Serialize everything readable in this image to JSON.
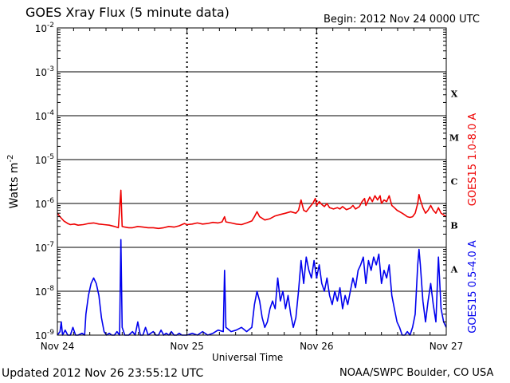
{
  "header": {
    "title": "GOES Xray Flux (5 minute data)",
    "begin": "Begin:  2012 Nov 24 0000 UTC"
  },
  "footer": {
    "updated": "Updated 2012 Nov 26 23:55:12 UTC",
    "credit": "NOAA/SWPC Boulder, CO USA"
  },
  "chart_data": {
    "type": "line",
    "title": "GOES Xray Flux (5 minute data)",
    "xlabel": "Universal Time",
    "ylabel": "Watts m-2",
    "yscale": "log",
    "ylim": [
      1e-09,
      0.01
    ],
    "xlim": [
      0,
      3
    ],
    "x_ticks": [
      {
        "x": 0,
        "label": "Nov 24"
      },
      {
        "x": 1,
        "label": "Nov 25"
      },
      {
        "x": 2,
        "label": "Nov 26"
      },
      {
        "x": 3,
        "label": "Nov 27"
      }
    ],
    "y_ticks": [
      {
        "value": 1e-09,
        "base": "10",
        "exp": "-9"
      },
      {
        "value": 1e-08,
        "base": "10",
        "exp": "-8"
      },
      {
        "value": 1e-07,
        "base": "10",
        "exp": "-7"
      },
      {
        "value": 1e-06,
        "base": "10",
        "exp": "-6"
      },
      {
        "value": 1e-05,
        "base": "10",
        "exp": "-5"
      },
      {
        "value": 0.0001,
        "base": "10",
        "exp": "-4"
      },
      {
        "value": 0.001,
        "base": "10",
        "exp": "-3"
      },
      {
        "value": 0.01,
        "base": "10",
        "exp": "-2"
      }
    ],
    "flare_classes": [
      {
        "label": "X",
        "value": 0.0001
      },
      {
        "label": "M",
        "value": 1e-05
      },
      {
        "label": "C",
        "value": 1e-06
      },
      {
        "label": "B",
        "value": 1e-07
      },
      {
        "label": "A",
        "value": 1e-08
      }
    ],
    "grid": true,
    "series": [
      {
        "name": "GOES15 1.0-8.0 A",
        "color": "#ee0000",
        "points": [
          [
            0.0,
            6e-07
          ],
          [
            0.02,
            5e-07
          ],
          [
            0.05,
            4e-07
          ],
          [
            0.08,
            3.5e-07
          ],
          [
            0.1,
            3.3e-07
          ],
          [
            0.13,
            3.4e-07
          ],
          [
            0.16,
            3.2e-07
          ],
          [
            0.2,
            3.3e-07
          ],
          [
            0.24,
            3.5e-07
          ],
          [
            0.28,
            3.6e-07
          ],
          [
            0.32,
            3.4e-07
          ],
          [
            0.36,
            3.3e-07
          ],
          [
            0.4,
            3.2e-07
          ],
          [
            0.44,
            3e-07
          ],
          [
            0.47,
            2.8e-07
          ],
          [
            0.49,
            2e-06
          ],
          [
            0.5,
            3e-07
          ],
          [
            0.52,
            2.9e-07
          ],
          [
            0.55,
            2.8e-07
          ],
          [
            0.58,
            2.8e-07
          ],
          [
            0.62,
            3e-07
          ],
          [
            0.66,
            2.9e-07
          ],
          [
            0.7,
            2.8e-07
          ],
          [
            0.74,
            2.8e-07
          ],
          [
            0.78,
            2.7e-07
          ],
          [
            0.82,
            2.8e-07
          ],
          [
            0.86,
            3e-07
          ],
          [
            0.9,
            2.9e-07
          ],
          [
            0.94,
            3.1e-07
          ],
          [
            0.98,
            3.5e-07
          ],
          [
            1.0,
            3.3e-07
          ],
          [
            1.04,
            3.4e-07
          ],
          [
            1.08,
            3.6e-07
          ],
          [
            1.12,
            3.4e-07
          ],
          [
            1.16,
            3.5e-07
          ],
          [
            1.2,
            3.7e-07
          ],
          [
            1.24,
            3.6e-07
          ],
          [
            1.27,
            3.8e-07
          ],
          [
            1.29,
            5e-07
          ],
          [
            1.3,
            3.8e-07
          ],
          [
            1.34,
            3.6e-07
          ],
          [
            1.38,
            3.4e-07
          ],
          [
            1.42,
            3.3e-07
          ],
          [
            1.46,
            3.6e-07
          ],
          [
            1.5,
            4e-07
          ],
          [
            1.52,
            5e-07
          ],
          [
            1.54,
            6.5e-07
          ],
          [
            1.56,
            5e-07
          ],
          [
            1.6,
            4.2e-07
          ],
          [
            1.64,
            4.5e-07
          ],
          [
            1.68,
            5.2e-07
          ],
          [
            1.72,
            5.6e-07
          ],
          [
            1.76,
            6e-07
          ],
          [
            1.8,
            6.5e-07
          ],
          [
            1.84,
            6e-07
          ],
          [
            1.86,
            7e-07
          ],
          [
            1.88,
            1.2e-06
          ],
          [
            1.9,
            7e-07
          ],
          [
            1.92,
            6.5e-07
          ],
          [
            1.95,
            8.5e-07
          ],
          [
            1.97,
            1e-06
          ],
          [
            1.99,
            1.3e-06
          ],
          [
            2.0,
            9e-07
          ],
          [
            2.02,
            1.1e-06
          ],
          [
            2.04,
            9.5e-07
          ],
          [
            2.06,
            8.5e-07
          ],
          [
            2.08,
            1e-06
          ],
          [
            2.1,
            8e-07
          ],
          [
            2.13,
            7.5e-07
          ],
          [
            2.16,
            8e-07
          ],
          [
            2.18,
            7.5e-07
          ],
          [
            2.2,
            8.5e-07
          ],
          [
            2.23,
            7.2e-07
          ],
          [
            2.26,
            7.8e-07
          ],
          [
            2.28,
            9e-07
          ],
          [
            2.3,
            7.5e-07
          ],
          [
            2.33,
            8.5e-07
          ],
          [
            2.35,
            1.1e-06
          ],
          [
            2.37,
            1.3e-06
          ],
          [
            2.38,
            9e-07
          ],
          [
            2.41,
            1.4e-06
          ],
          [
            2.43,
            1.1e-06
          ],
          [
            2.45,
            1.5e-06
          ],
          [
            2.47,
            1.2e-06
          ],
          [
            2.49,
            1.5e-06
          ],
          [
            2.5,
            1e-06
          ],
          [
            2.52,
            1.2e-06
          ],
          [
            2.54,
            1.1e-06
          ],
          [
            2.56,
            1.5e-06
          ],
          [
            2.58,
            9e-07
          ],
          [
            2.6,
            8e-07
          ],
          [
            2.62,
            7e-07
          ],
          [
            2.64,
            6.5e-07
          ],
          [
            2.66,
            6e-07
          ],
          [
            2.68,
            5.5e-07
          ],
          [
            2.7,
            5e-07
          ],
          [
            2.72,
            4.8e-07
          ],
          [
            2.74,
            5e-07
          ],
          [
            2.76,
            6e-07
          ],
          [
            2.78,
            1e-06
          ],
          [
            2.79,
            1.6e-06
          ],
          [
            2.8,
            1.2e-06
          ],
          [
            2.82,
            8e-07
          ],
          [
            2.84,
            6e-07
          ],
          [
            2.86,
            7e-07
          ],
          [
            2.88,
            9e-07
          ],
          [
            2.9,
            7e-07
          ],
          [
            2.92,
            6e-07
          ],
          [
            2.94,
            8e-07
          ],
          [
            2.96,
            6e-07
          ],
          [
            2.98,
            5.5e-07
          ],
          [
            3.0,
            5e-07
          ]
        ]
      },
      {
        "name": "GOES15 0.5-4.0 A",
        "color": "#0000ee",
        "points": [
          [
            0.0,
            1e-09
          ],
          [
            0.02,
            1.2e-09
          ],
          [
            0.03,
            2e-09
          ],
          [
            0.04,
            1e-09
          ],
          [
            0.06,
            1.3e-09
          ],
          [
            0.08,
            1e-09
          ],
          [
            0.1,
            1e-09
          ],
          [
            0.12,
            1.5e-09
          ],
          [
            0.14,
            1e-09
          ],
          [
            0.16,
            1e-09
          ],
          [
            0.19,
            1.1e-09
          ],
          [
            0.21,
            1e-09
          ],
          [
            0.22,
            3e-09
          ],
          [
            0.24,
            8e-09
          ],
          [
            0.26,
            1.5e-08
          ],
          [
            0.28,
            2e-08
          ],
          [
            0.3,
            1.5e-08
          ],
          [
            0.32,
            8e-09
          ],
          [
            0.34,
            2.5e-09
          ],
          [
            0.36,
            1.2e-09
          ],
          [
            0.38,
            1e-09
          ],
          [
            0.4,
            1.1e-09
          ],
          [
            0.42,
            1e-09
          ],
          [
            0.44,
            1e-09
          ],
          [
            0.46,
            1.2e-09
          ],
          [
            0.48,
            1e-09
          ],
          [
            0.49,
            1.5e-07
          ],
          [
            0.5,
            1.5e-09
          ],
          [
            0.52,
            1e-09
          ],
          [
            0.55,
            1e-09
          ],
          [
            0.58,
            1.2e-09
          ],
          [
            0.6,
            1e-09
          ],
          [
            0.62,
            2e-09
          ],
          [
            0.64,
            1e-09
          ],
          [
            0.66,
            1e-09
          ],
          [
            0.68,
            1.5e-09
          ],
          [
            0.7,
            1e-09
          ],
          [
            0.72,
            1.1e-09
          ],
          [
            0.74,
            1.2e-09
          ],
          [
            0.76,
            1e-09
          ],
          [
            0.78,
            1e-09
          ],
          [
            0.8,
            1.3e-09
          ],
          [
            0.82,
            1e-09
          ],
          [
            0.84,
            1.1e-09
          ],
          [
            0.86,
            1e-09
          ],
          [
            0.88,
            1.2e-09
          ],
          [
            0.9,
            1e-09
          ],
          [
            0.92,
            1e-09
          ],
          [
            0.94,
            1.1e-09
          ],
          [
            0.96,
            1e-09
          ],
          [
            1.0,
            1e-09
          ],
          [
            1.04,
            1.1e-09
          ],
          [
            1.08,
            1e-09
          ],
          [
            1.12,
            1.2e-09
          ],
          [
            1.16,
            1e-09
          ],
          [
            1.2,
            1.1e-09
          ],
          [
            1.24,
            1.3e-09
          ],
          [
            1.28,
            1.2e-09
          ],
          [
            1.29,
            3e-08
          ],
          [
            1.3,
            1.5e-09
          ],
          [
            1.34,
            1.2e-09
          ],
          [
            1.38,
            1.3e-09
          ],
          [
            1.42,
            1.5e-09
          ],
          [
            1.46,
            1.2e-09
          ],
          [
            1.5,
            1.5e-09
          ],
          [
            1.52,
            5e-09
          ],
          [
            1.54,
            1e-08
          ],
          [
            1.56,
            6e-09
          ],
          [
            1.58,
            2.5e-09
          ],
          [
            1.6,
            1.5e-09
          ],
          [
            1.62,
            2e-09
          ],
          [
            1.64,
            4e-09
          ],
          [
            1.66,
            6e-09
          ],
          [
            1.68,
            4e-09
          ],
          [
            1.7,
            2e-08
          ],
          [
            1.72,
            6e-09
          ],
          [
            1.74,
            1e-08
          ],
          [
            1.76,
            4e-09
          ],
          [
            1.78,
            8e-09
          ],
          [
            1.8,
            3e-09
          ],
          [
            1.82,
            1.5e-09
          ],
          [
            1.84,
            2.5e-09
          ],
          [
            1.86,
            1e-08
          ],
          [
            1.88,
            5e-08
          ],
          [
            1.9,
            1.5e-08
          ],
          [
            1.92,
            6e-08
          ],
          [
            1.94,
            3e-08
          ],
          [
            1.96,
            2e-08
          ],
          [
            1.98,
            5e-08
          ],
          [
            2.0,
            2e-08
          ],
          [
            2.02,
            4e-08
          ],
          [
            2.04,
            1.5e-08
          ],
          [
            2.06,
            1e-08
          ],
          [
            2.08,
            2e-08
          ],
          [
            2.1,
            8e-09
          ],
          [
            2.12,
            5e-09
          ],
          [
            2.14,
            1e-08
          ],
          [
            2.16,
            6e-09
          ],
          [
            2.18,
            1.2e-08
          ],
          [
            2.2,
            4e-09
          ],
          [
            2.22,
            8e-09
          ],
          [
            2.24,
            5e-09
          ],
          [
            2.26,
            1e-08
          ],
          [
            2.28,
            2e-08
          ],
          [
            2.3,
            1.2e-08
          ],
          [
            2.32,
            3e-08
          ],
          [
            2.34,
            4e-08
          ],
          [
            2.36,
            6e-08
          ],
          [
            2.38,
            1.5e-08
          ],
          [
            2.4,
            5e-08
          ],
          [
            2.42,
            3e-08
          ],
          [
            2.44,
            6e-08
          ],
          [
            2.46,
            4e-08
          ],
          [
            2.48,
            7e-08
          ],
          [
            2.5,
            1.5e-08
          ],
          [
            2.52,
            3e-08
          ],
          [
            2.54,
            2e-08
          ],
          [
            2.56,
            4e-08
          ],
          [
            2.58,
            8e-09
          ],
          [
            2.6,
            4e-09
          ],
          [
            2.62,
            2e-09
          ],
          [
            2.64,
            1.5e-09
          ],
          [
            2.66,
            1e-09
          ],
          [
            2.68,
            1e-09
          ],
          [
            2.7,
            1.2e-09
          ],
          [
            2.72,
            1e-09
          ],
          [
            2.74,
            1.5e-09
          ],
          [
            2.76,
            3e-09
          ],
          [
            2.78,
            4e-08
          ],
          [
            2.79,
            9e-08
          ],
          [
            2.8,
            4e-08
          ],
          [
            2.82,
            6e-09
          ],
          [
            2.84,
            2e-09
          ],
          [
            2.86,
            6e-09
          ],
          [
            2.88,
            1.5e-08
          ],
          [
            2.9,
            5e-09
          ],
          [
            2.92,
            2e-09
          ],
          [
            2.94,
            6e-08
          ],
          [
            2.96,
            4e-09
          ],
          [
            2.98,
            2e-09
          ],
          [
            3.0,
            1.5e-09
          ]
        ]
      }
    ]
  }
}
